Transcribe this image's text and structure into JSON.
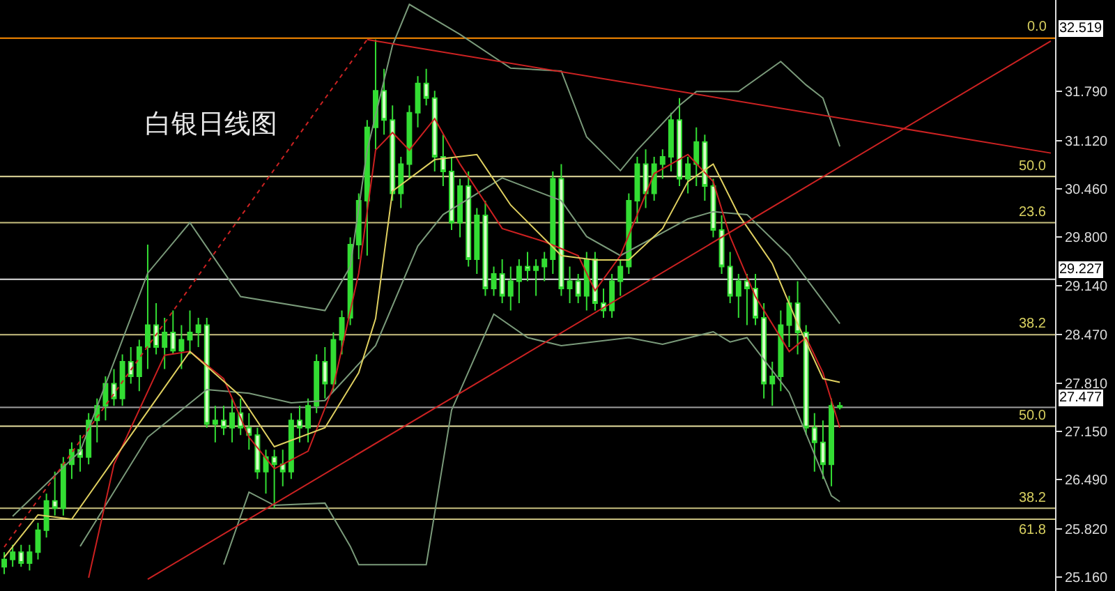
{
  "chart_data": {
    "type": "candlestick",
    "title": "白银日线图",
    "color": "#33dd33",
    "categories": [
      null,
      null,
      null,
      null,
      null,
      null,
      null,
      null,
      null,
      null,
      null,
      null,
      null,
      null,
      null,
      null,
      null,
      null,
      null,
      null,
      null,
      null,
      null,
      null,
      null,
      null,
      null,
      null,
      null,
      null,
      null,
      null,
      null,
      null,
      null,
      null,
      null,
      null,
      null,
      null,
      null,
      null,
      null,
      null,
      null,
      null,
      null,
      null,
      null,
      null,
      null,
      null,
      null,
      null,
      null,
      null,
      null,
      null,
      null,
      null,
      null,
      null,
      null,
      null,
      null,
      null,
      null,
      null,
      null,
      null,
      null,
      null,
      null,
      null,
      null,
      null,
      null,
      null,
      null,
      null,
      null,
      null,
      null,
      null,
      null,
      null,
      null,
      null,
      null,
      null,
      null,
      null,
      null,
      null,
      null,
      null,
      null,
      null,
      null,
      null,
      null,
      null,
      null,
      null,
      null,
      null,
      null,
      null,
      null,
      null,
      null,
      null,
      null,
      null,
      null,
      null,
      null,
      null,
      null,
      null,
      null,
      null,
      null,
      null,
      null
    ],
    "ohlc": [
      [
        25.3,
        25.5,
        25.2,
        25.4
      ],
      [
        25.4,
        25.6,
        25.3,
        25.5
      ],
      [
        25.5,
        25.6,
        25.3,
        25.35
      ],
      [
        25.35,
        25.6,
        25.25,
        25.5
      ],
      [
        25.5,
        25.9,
        25.4,
        25.8
      ],
      [
        25.8,
        26.3,
        25.7,
        26.2
      ],
      [
        26.2,
        26.6,
        26.0,
        26.1
      ],
      [
        26.1,
        26.8,
        26.0,
        26.7
      ],
      [
        26.7,
        27.0,
        26.5,
        26.9
      ],
      [
        26.9,
        27.1,
        26.6,
        26.8
      ],
      [
        26.8,
        27.4,
        26.7,
        27.3
      ],
      [
        27.3,
        27.6,
        27.0,
        27.5
      ],
      [
        27.5,
        27.9,
        27.3,
        27.8
      ],
      [
        27.8,
        28.0,
        27.5,
        27.6
      ],
      [
        27.6,
        28.2,
        27.5,
        28.1
      ],
      [
        28.1,
        28.3,
        27.8,
        27.9
      ],
      [
        27.9,
        28.4,
        27.7,
        28.3
      ],
      [
        28.3,
        29.7,
        28.0,
        28.6
      ],
      [
        28.6,
        28.9,
        28.2,
        28.3
      ],
      [
        28.3,
        28.7,
        28.0,
        28.5
      ],
      [
        28.5,
        28.8,
        28.2,
        28.25
      ],
      [
        28.25,
        28.6,
        28.0,
        28.4
      ],
      [
        28.4,
        28.8,
        28.2,
        28.5
      ],
      [
        28.5,
        28.7,
        28.3,
        28.6
      ],
      [
        28.6,
        28.7,
        27.2,
        27.25
      ],
      [
        27.25,
        27.5,
        27.0,
        27.3
      ],
      [
        27.3,
        27.5,
        27.1,
        27.2
      ],
      [
        27.2,
        27.6,
        27.0,
        27.4
      ],
      [
        27.4,
        27.6,
        27.1,
        27.2
      ],
      [
        27.2,
        27.4,
        26.9,
        27.1
      ],
      [
        27.1,
        27.2,
        26.5,
        26.6
      ],
      [
        26.6,
        26.9,
        26.3,
        26.8
      ],
      [
        26.8,
        26.9,
        26.1,
        26.7
      ],
      [
        26.7,
        26.9,
        26.4,
        26.6
      ],
      [
        26.6,
        27.4,
        26.5,
        27.3
      ],
      [
        27.3,
        27.5,
        27.0,
        27.2
      ],
      [
        27.2,
        27.6,
        27.0,
        27.5
      ],
      [
        27.5,
        28.2,
        27.4,
        28.1
      ],
      [
        28.1,
        28.3,
        27.6,
        27.8
      ],
      [
        27.8,
        28.5,
        27.7,
        28.4
      ],
      [
        28.4,
        28.8,
        28.2,
        28.7
      ],
      [
        28.7,
        29.8,
        28.6,
        29.7
      ],
      [
        29.7,
        30.4,
        29.5,
        30.3
      ],
      [
        30.3,
        31.4,
        29.55,
        31.3
      ],
      [
        31.3,
        32.5,
        31.0,
        31.8
      ],
      [
        31.8,
        32.1,
        31.2,
        31.4
      ],
      [
        31.4,
        31.6,
        30.3,
        30.4
      ],
      [
        30.4,
        30.9,
        30.2,
        30.8
      ],
      [
        30.8,
        31.6,
        30.6,
        31.5
      ],
      [
        31.5,
        32.0,
        31.3,
        31.9
      ],
      [
        31.9,
        32.1,
        31.6,
        31.7
      ],
      [
        31.7,
        31.8,
        30.7,
        30.9
      ],
      [
        30.9,
        31.2,
        30.5,
        30.7
      ],
      [
        30.7,
        30.9,
        29.9,
        30.0
      ],
      [
        30.0,
        30.6,
        29.8,
        30.5
      ],
      [
        30.5,
        30.7,
        29.4,
        29.5
      ],
      [
        29.5,
        30.2,
        29.3,
        30.1
      ],
      [
        30.1,
        30.3,
        29.0,
        29.1
      ],
      [
        29.1,
        29.4,
        29.0,
        29.3
      ],
      [
        29.3,
        29.5,
        28.9,
        29.0
      ],
      [
        29.0,
        29.4,
        28.8,
        29.2
      ],
      [
        29.2,
        29.5,
        28.9,
        29.4
      ],
      [
        29.4,
        29.6,
        29.2,
        29.35
      ],
      [
        29.35,
        29.5,
        29.0,
        29.4
      ],
      [
        29.4,
        29.6,
        29.2,
        29.5
      ],
      [
        29.5,
        30.7,
        29.3,
        30.6
      ],
      [
        30.6,
        30.8,
        29.0,
        29.1
      ],
      [
        29.1,
        29.4,
        28.9,
        29.2
      ],
      [
        29.2,
        29.3,
        28.9,
        29.0
      ],
      [
        29.0,
        29.6,
        28.8,
        29.5
      ],
      [
        29.5,
        29.6,
        28.8,
        28.9
      ],
      [
        28.9,
        29.1,
        28.7,
        28.8
      ],
      [
        28.8,
        29.3,
        28.7,
        29.2
      ],
      [
        29.2,
        29.5,
        29.0,
        29.4
      ],
      [
        29.4,
        30.4,
        29.3,
        30.3
      ],
      [
        30.3,
        30.9,
        30.0,
        30.8
      ],
      [
        30.8,
        31.0,
        30.2,
        30.4
      ],
      [
        30.4,
        30.9,
        30.3,
        30.8
      ],
      [
        30.8,
        31.0,
        30.6,
        30.9
      ],
      [
        30.9,
        31.5,
        30.7,
        31.4
      ],
      [
        31.4,
        31.7,
        30.5,
        30.6
      ],
      [
        30.6,
        30.9,
        30.4,
        30.8
      ],
      [
        30.8,
        31.3,
        30.5,
        31.1
      ],
      [
        31.1,
        31.2,
        30.3,
        30.5
      ],
      [
        30.5,
        30.6,
        29.8,
        29.9
      ],
      [
        29.9,
        30.1,
        29.3,
        29.4
      ],
      [
        29.4,
        29.6,
        28.9,
        29.0
      ],
      [
        29.0,
        29.3,
        28.7,
        29.2
      ],
      [
        29.2,
        29.3,
        28.6,
        29.1
      ],
      [
        29.1,
        29.3,
        28.6,
        28.7
      ],
      [
        28.7,
        28.9,
        27.6,
        27.8
      ],
      [
        27.8,
        28.1,
        27.5,
        27.9
      ],
      [
        27.9,
        28.8,
        27.7,
        28.6
      ],
      [
        28.6,
        29.0,
        28.3,
        28.9
      ],
      [
        28.9,
        29.2,
        28.2,
        28.5
      ],
      [
        28.5,
        28.6,
        27.1,
        27.2
      ],
      [
        27.2,
        27.4,
        26.6,
        27.0
      ],
      [
        27.0,
        27.3,
        26.5,
        26.7
      ],
      [
        26.7,
        27.6,
        26.4,
        27.5
      ],
      [
        27.5,
        27.55,
        27.45,
        27.48
      ],
      null,
      null,
      null,
      null,
      null,
      null,
      null,
      null,
      null,
      null,
      null,
      null,
      null,
      null,
      null,
      null,
      null,
      null,
      null,
      null,
      null,
      null,
      null,
      null,
      null
    ],
    "series": [
      {
        "type": "line",
        "color": "#7a9a7a",
        "values": [
          null,
          25.99,
          null,
          null,
          null,
          null,
          null,
          null,
          null,
          26.88,
          null,
          null,
          null,
          null,
          null,
          null,
          null,
          29.31,
          null,
          null,
          null,
          null,
          30.0,
          null,
          null,
          null,
          null,
          null,
          28.99,
          null,
          null,
          null,
          null,
          null,
          null,
          null,
          null,
          null,
          28.8,
          null,
          null,
          29.4,
          null,
          30.99,
          null,
          null,
          32.42,
          null,
          32.98,
          null,
          null,
          null,
          null,
          null,
          32.57,
          null,
          null,
          null,
          null,
          null,
          32.11,
          null,
          null,
          null,
          null,
          null,
          32.07,
          null,
          null,
          31.17,
          null,
          null,
          null,
          30.71,
          null,
          30.99,
          null,
          null,
          null,
          null,
          31.6,
          null,
          31.79,
          null,
          null,
          null,
          null,
          31.79,
          null,
          null,
          null,
          null,
          32.2,
          null,
          null,
          31.88,
          null,
          31.7,
          null,
          31.04,
          null,
          null,
          null,
          null,
          null,
          null,
          null,
          null,
          null,
          null,
          null,
          null,
          null,
          null,
          null,
          null,
          null,
          null,
          null,
          null,
          null,
          null,
          null,
          null,
          null
        ]
      },
      {
        "type": "line",
        "color": "#7a9a7a",
        "values": [
          null,
          null,
          null,
          null,
          null,
          null,
          null,
          null,
          null,
          25.58,
          null,
          null,
          null,
          null,
          null,
          null,
          null,
          27.07,
          null,
          null,
          null,
          null,
          null,
          null,
          27.72,
          null,
          null,
          null,
          null,
          27.67,
          null,
          null,
          null,
          null,
          27.54,
          null,
          null,
          null,
          27.57,
          null,
          null,
          null,
          null,
          null,
          28.32,
          null,
          null,
          null,
          null,
          29.68,
          null,
          null,
          30.11,
          null,
          null,
          null,
          null,
          null,
          null,
          30.61,
          null,
          null,
          null,
          null,
          null,
          null,
          30.3,
          null,
          null,
          29.81,
          null,
          null,
          null,
          29.55,
          null,
          null,
          null,
          null,
          null,
          null,
          null,
          30.05,
          null,
          null,
          30.15,
          null,
          null,
          null,
          30.11,
          null,
          null,
          null,
          null,
          29.55,
          null,
          null,
          null,
          null,
          null,
          28.62,
          null,
          null,
          null,
          null,
          null,
          null,
          null,
          null,
          null,
          null,
          null,
          null,
          null,
          null,
          null,
          null,
          null,
          null,
          null,
          null,
          null,
          null,
          null,
          null,
          null
        ]
      },
      {
        "type": "line",
        "color": "#7a9a7a",
        "values": [
          null,
          null,
          null,
          null,
          null,
          null,
          null,
          null,
          null,
          null,
          null,
          null,
          null,
          null,
          null,
          null,
          null,
          null,
          null,
          null,
          null,
          null,
          null,
          null,
          null,
          null,
          25.33,
          null,
          null,
          26.32,
          null,
          null,
          26.14,
          null,
          null,
          null,
          null,
          null,
          26.17,
          null,
          null,
          25.58,
          25.33,
          null,
          null,
          null,
          null,
          null,
          null,
          null,
          25.33,
          null,
          null,
          27.44,
          null,
          null,
          null,
          null,
          28.75,
          null,
          null,
          null,
          28.43,
          null,
          null,
          null,
          28.32,
          null,
          null,
          null,
          null,
          null,
          null,
          null,
          28.43,
          null,
          null,
          null,
          28.34,
          null,
          null,
          null,
          null,
          null,
          28.51,
          null,
          28.37,
          null,
          28.43,
          null,
          null,
          null,
          null,
          27.68,
          null,
          null,
          null,
          null,
          26.27,
          26.19,
          null,
          null,
          null,
          null,
          null,
          null,
          null,
          null,
          null,
          null,
          null,
          null,
          null,
          null,
          null,
          null,
          null,
          null,
          null,
          null,
          null,
          null,
          null,
          null,
          null
        ]
      },
      {
        "type": "line",
        "color": "#cc2020",
        "values": [
          null,
          null,
          null,
          null,
          null,
          null,
          null,
          null,
          null,
          null,
          25.15,
          null,
          null,
          26.7,
          null,
          null,
          null,
          null,
          null,
          28.19,
          null,
          null,
          28.24,
          null,
          null,
          null,
          27.87,
          null,
          null,
          27.07,
          null,
          null,
          26.64,
          null,
          null,
          null,
          26.88,
          null,
          null,
          27.76,
          null,
          null,
          29.31,
          null,
          30.99,
          null,
          31.23,
          null,
          30.99,
          null,
          null,
          31.42,
          null,
          null,
          30.8,
          null,
          null,
          null,
          null,
          29.92,
          null,
          null,
          null,
          null,
          29.74,
          null,
          null,
          null,
          29.55,
          null,
          29.07,
          null,
          null,
          29.55,
          null,
          null,
          null,
          30.67,
          null,
          null,
          null,
          30.93,
          null,
          null,
          30.56,
          null,
          29.81,
          null,
          null,
          28.99,
          null,
          null,
          null,
          28.24,
          null,
          28.43,
          null,
          27.95,
          null,
          27.2,
          null,
          null,
          null,
          null,
          null,
          null,
          null,
          null,
          null,
          null,
          null,
          null,
          null,
          null,
          null,
          null,
          null,
          null,
          null,
          null,
          null,
          null,
          null,
          null,
          null
        ]
      },
      {
        "type": "line",
        "color": "#e0d060",
        "values": [
          25.43,
          null,
          null,
          null,
          26.01,
          null,
          null,
          null,
          25.95,
          null,
          null,
          null,
          null,
          null,
          null,
          null,
          27.26,
          null,
          null,
          null,
          null,
          null,
          28.24,
          null,
          null,
          null,
          null,
          null,
          27.63,
          null,
          null,
          null,
          26.94,
          null,
          null,
          null,
          null,
          null,
          27.2,
          null,
          null,
          null,
          27.95,
          null,
          28.69,
          null,
          30.43,
          null,
          null,
          null,
          null,
          30.86,
          null,
          null,
          null,
          null,
          30.93,
          null,
          null,
          null,
          30.24,
          null,
          null,
          null,
          null,
          null,
          29.55,
          null,
          null,
          null,
          29.49,
          null,
          null,
          null,
          29.49,
          null,
          null,
          null,
          29.92,
          null,
          null,
          30.56,
          null,
          null,
          30.8,
          null,
          null,
          30.11,
          null,
          null,
          null,
          29.44,
          null,
          null,
          28.62,
          null,
          null,
          27.87,
          null,
          27.82,
          null,
          null,
          null,
          null,
          null,
          null,
          null,
          null,
          null,
          null,
          null,
          null,
          null,
          null,
          null,
          null,
          null,
          null,
          null,
          null,
          null,
          null,
          null,
          null,
          null
        ]
      },
      {
        "type": "line",
        "color": "#cc2222",
        "values": [
          null,
          null,
          null,
          null,
          null,
          null,
          null,
          null,
          null,
          null,
          null,
          null,
          null,
          null,
          null,
          null,
          null,
          null,
          null,
          null,
          null,
          null,
          null,
          null,
          null,
          null,
          null,
          null,
          null,
          null,
          null,
          null,
          null,
          null,
          null,
          null,
          null,
          null,
          null,
          null,
          null,
          null,
          null,
          32.5,
          null,
          null,
          null,
          null,
          null,
          null,
          null,
          null,
          null,
          null,
          null,
          null,
          null,
          null,
          null,
          null,
          null,
          null,
          null,
          null,
          null,
          null,
          null,
          null,
          null,
          null,
          null,
          null,
          null,
          null,
          null,
          null,
          null,
          null,
          null,
          null,
          null,
          null,
          null,
          null,
          null,
          null,
          null,
          null,
          null,
          null,
          null,
          null,
          null,
          null,
          null,
          null,
          null,
          null,
          null,
          null,
          null,
          null,
          null,
          null,
          null,
          null,
          null,
          null,
          null,
          null,
          null,
          null,
          null,
          null,
          null,
          null,
          null,
          null,
          null,
          null,
          null,
          null,
          null,
          null,
          30.95
        ]
      },
      {
        "type": "line",
        "color": "#cc2222",
        "values": [
          null,
          null,
          null,
          null,
          null,
          null,
          null,
          null,
          null,
          null,
          null,
          null,
          null,
          null,
          null,
          null,
          null,
          25.13,
          null,
          null,
          null,
          null,
          null,
          null,
          null,
          null,
          null,
          null,
          null,
          null,
          null,
          null,
          null,
          null,
          null,
          null,
          null,
          null,
          null,
          null,
          null,
          null,
          null,
          null,
          null,
          null,
          null,
          null,
          null,
          null,
          null,
          null,
          null,
          null,
          null,
          null,
          null,
          null,
          null,
          null,
          null,
          null,
          null,
          null,
          null,
          null,
          null,
          null,
          null,
          null,
          null,
          null,
          null,
          null,
          null,
          null,
          null,
          null,
          null,
          null,
          null,
          null,
          null,
          null,
          null,
          null,
          null,
          null,
          null,
          null,
          null,
          null,
          null,
          null,
          null,
          null,
          null,
          null,
          null,
          null,
          null,
          null,
          null,
          null,
          null,
          null,
          null,
          null,
          null,
          null,
          null,
          null,
          null,
          null,
          null,
          null,
          null,
          null,
          null,
          null,
          null,
          null,
          null,
          null,
          32.48
        ]
      },
      {
        "type": "line",
        "color": "#cc2222",
        "line_style": "dotted",
        "values": [
          25.57,
          null,
          null,
          null,
          null,
          null,
          null,
          null,
          null,
          null,
          null,
          null,
          null,
          null,
          null,
          null,
          null,
          null,
          null,
          null,
          null,
          null,
          null,
          null,
          null,
          null,
          null,
          null,
          null,
          null,
          null,
          null,
          null,
          null,
          null,
          null,
          null,
          null,
          null,
          null,
          null,
          null,
          null,
          32.5,
          null,
          null,
          null,
          null,
          null,
          null,
          null,
          null,
          null,
          null,
          null,
          null,
          null,
          null,
          null,
          null,
          null,
          null,
          null,
          null,
          null,
          null,
          null,
          null,
          null,
          null,
          null,
          null,
          null,
          null,
          null,
          null,
          null,
          null,
          null,
          null,
          null,
          null,
          null,
          null,
          null,
          null,
          null,
          null,
          null,
          null,
          null,
          null,
          null,
          null,
          null,
          null,
          null,
          null,
          null,
          null,
          null,
          null,
          null,
          null,
          null,
          null,
          null,
          null,
          null,
          null,
          null,
          null,
          null,
          null,
          null,
          null,
          null,
          null,
          null,
          null,
          null,
          null,
          null,
          null,
          null
        ]
      }
    ],
    "ylim": [
      24.97,
      33.04
    ],
    "yticks": [
      {
        "value": 25.16,
        "label": "25.160"
      },
      {
        "value": 25.82,
        "label": "25.820"
      },
      {
        "value": 26.49,
        "label": "26.490"
      },
      {
        "value": 27.15,
        "label": "27.150"
      },
      {
        "value": 27.81,
        "label": "27.810"
      },
      {
        "value": 28.47,
        "label": "28.470"
      },
      {
        "value": 29.14,
        "label": "29.140"
      },
      {
        "value": 29.8,
        "label": "29.800"
      },
      {
        "value": 30.46,
        "label": "30.460"
      },
      {
        "value": 31.12,
        "label": "31.120"
      },
      {
        "value": 31.79,
        "label": "31.790"
      }
    ],
    "ref_lines": [
      {
        "axis": "y",
        "value": 32.519,
        "label": "32.519",
        "color": "#ff8c00"
      },
      {
        "axis": "y",
        "value": 30.63,
        "color": "#e8e0a0"
      },
      {
        "axis": "y",
        "value": 30.0,
        "color": "#c8c080"
      },
      {
        "axis": "y",
        "value": 29.227,
        "label": "29.227",
        "color": "#e0e0e0"
      },
      {
        "axis": "y",
        "value": 28.47,
        "color": "#c8c080"
      },
      {
        "axis": "y",
        "value": 27.477,
        "label": "27.477",
        "color": "#a0a0a0"
      },
      {
        "axis": "y",
        "value": 27.22,
        "color": "#e8e0a0"
      },
      {
        "axis": "y",
        "value": 26.1,
        "color": "#c8c080"
      },
      {
        "axis": "y",
        "value": 25.95,
        "color": "#c8c080"
      }
    ],
    "annotations": [
      {
        "text": "0.0",
        "y": 32.519
      },
      {
        "text": "50.0",
        "y": 30.63
      },
      {
        "text": "23.6",
        "y": 30.0
      },
      {
        "text": "38.2",
        "y": 28.47
      },
      {
        "text": "50.0",
        "y": 27.22
      },
      {
        "text": "38.2",
        "y": 26.1
      },
      {
        "text": "61.8",
        "y": 25.95
      }
    ],
    "tick_labels": "y"
  }
}
